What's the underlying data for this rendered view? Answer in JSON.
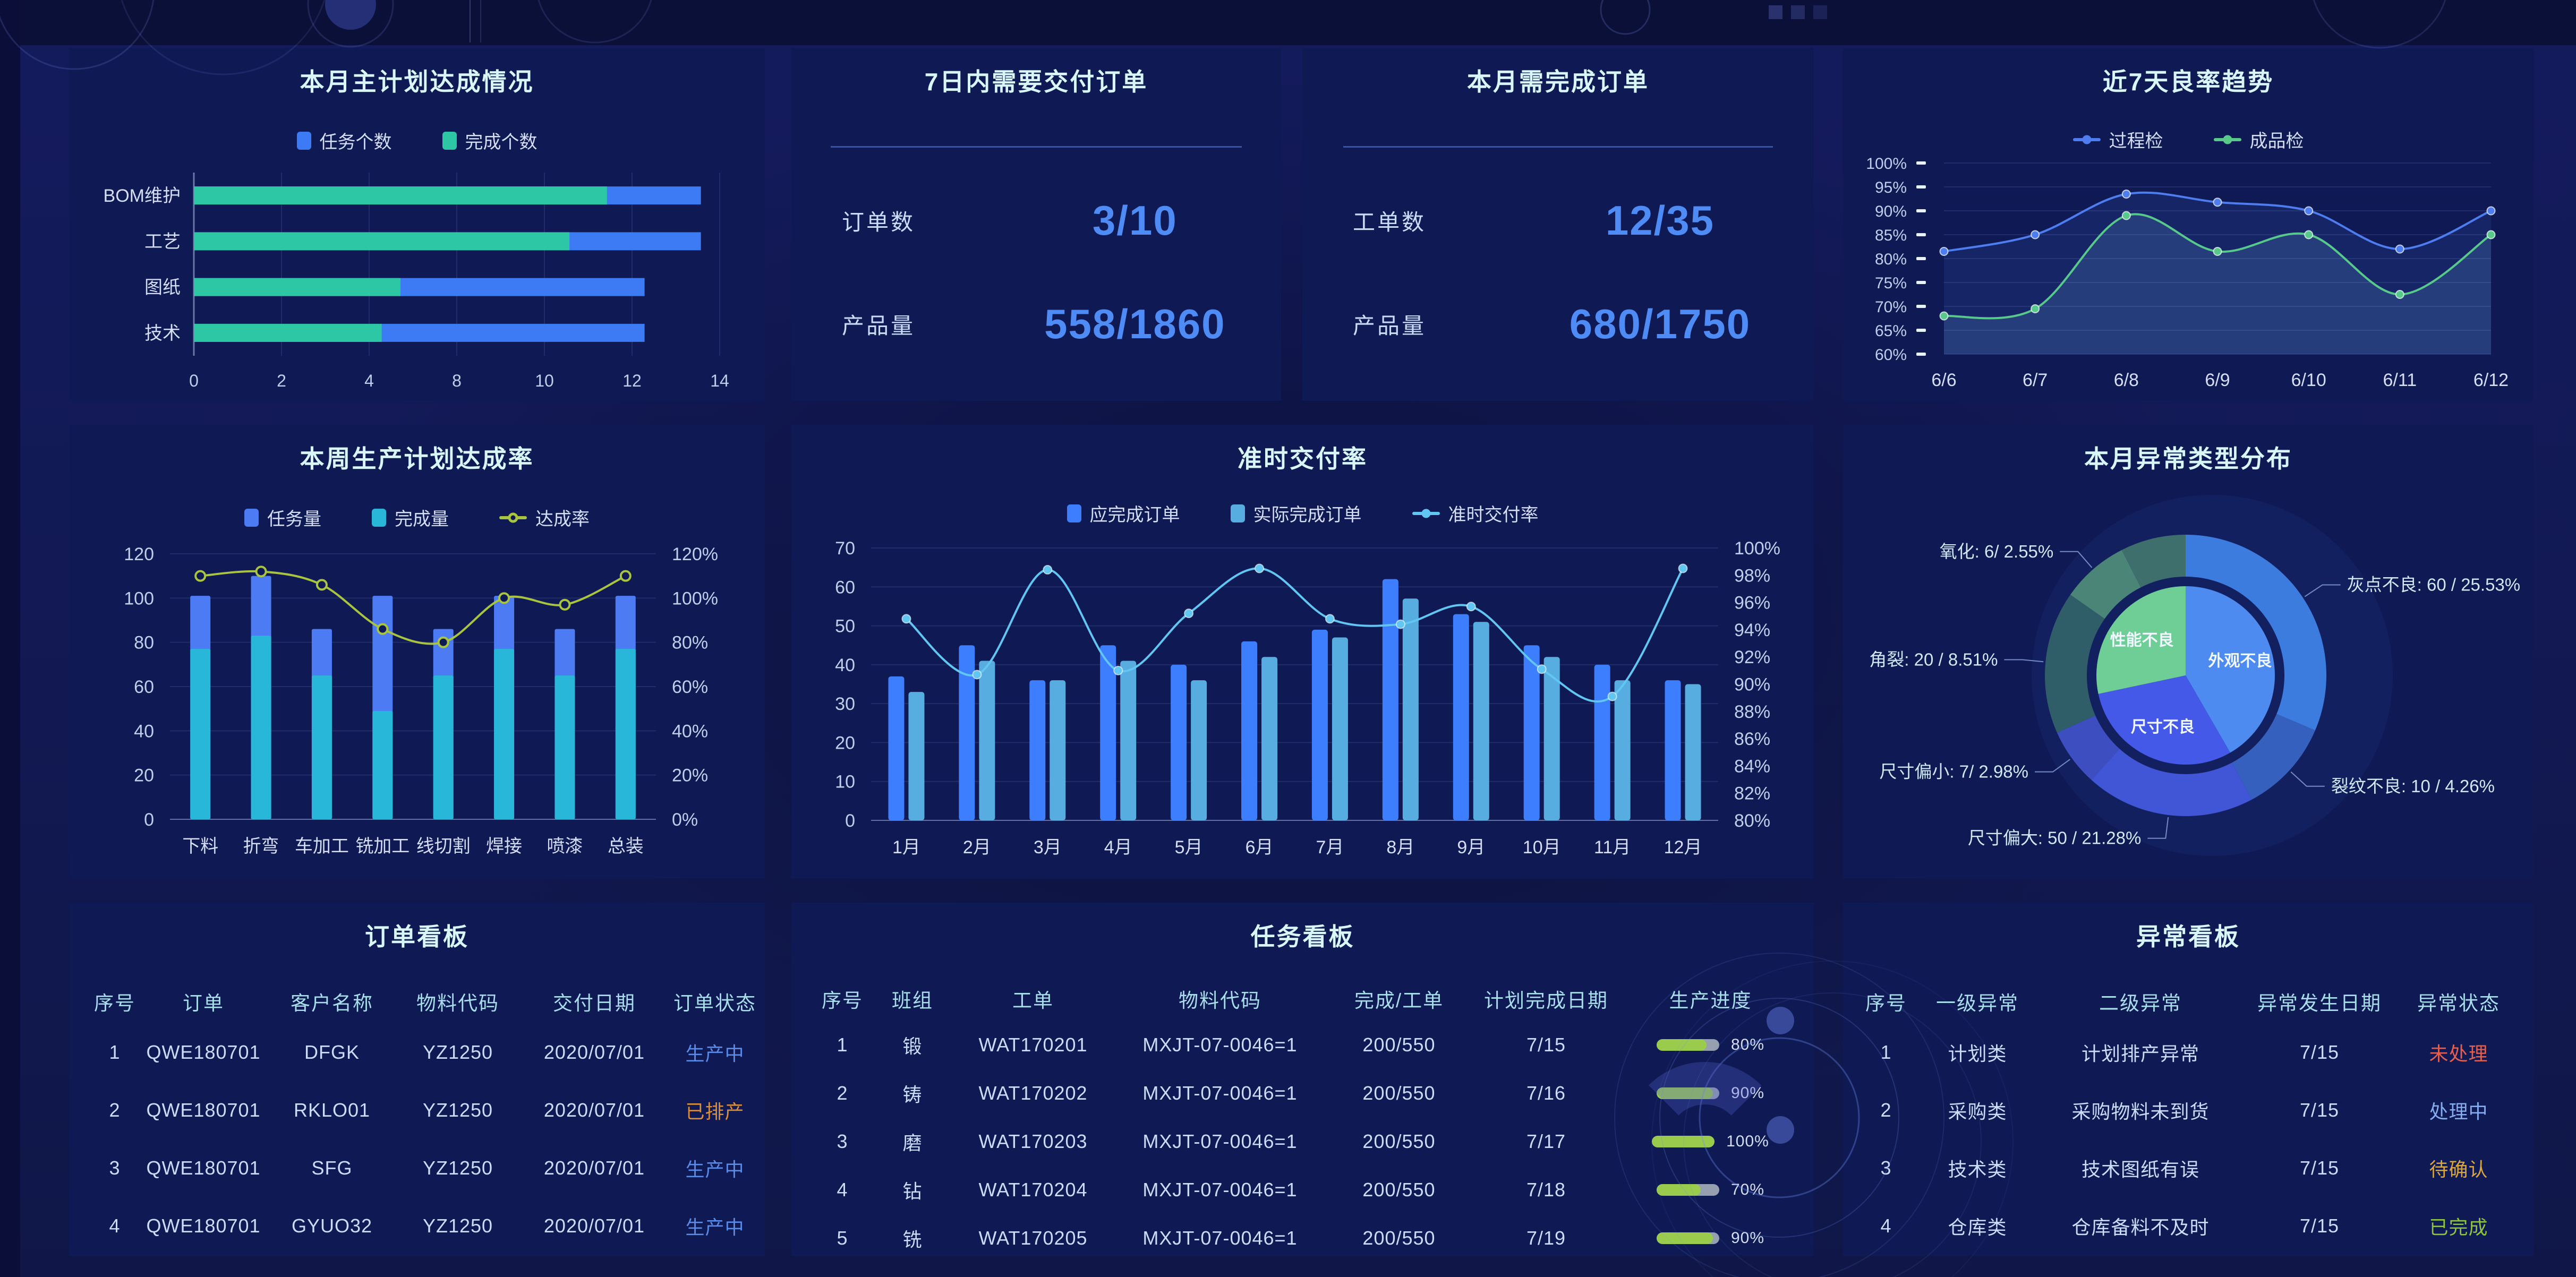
{
  "colors": {
    "accent_blue": "#4F8BF5",
    "title": "#D8F5F8",
    "panel_bg": "#0F1A55",
    "page_bg": "#0C113E",
    "progress_fill": "#9BCB4D",
    "progress_track": "#97A0B0"
  },
  "chart_data": [
    {
      "id": "plan",
      "type": "bar",
      "orientation": "horizontal",
      "title": "本月主计划达成情况",
      "categories": [
        "BOM维护",
        "工艺",
        "图纸",
        "技术"
      ],
      "series": [
        {
          "name": "任务个数",
          "color": "#3D7BF5",
          "values": [
            13.5,
            13.5,
            12,
            12
          ]
        },
        {
          "name": "完成个数",
          "color": "#2EC7A6",
          "values": [
            11,
            10,
            5.5,
            5
          ]
        }
      ],
      "xticks": [
        "0",
        "2",
        "4",
        "8",
        "10",
        "12",
        "14"
      ],
      "xmax": 14,
      "legend": [
        {
          "label": "任务个数",
          "color": "#3D7BF5",
          "marker": "square"
        },
        {
          "label": "完成个数",
          "color": "#2EC7A6",
          "marker": "square"
        }
      ]
    },
    {
      "id": "yield",
      "type": "line",
      "title": "近7天良率趋势",
      "categories": [
        "6/6",
        "6/7",
        "6/8",
        "6/9",
        "6/10",
        "6/11",
        "6/12"
      ],
      "series": [
        {
          "name": "过程检",
          "color": "#4E7DF0",
          "area": "rgba(90,140,255,0.10)",
          "values": [
            81.5,
            85,
            93.5,
            91.8,
            90,
            82,
            90
          ]
        },
        {
          "name": "成品检",
          "color": "#58C98B",
          "area": "rgba(140,210,255,0.14)",
          "values": [
            68,
            69.5,
            89,
            81.5,
            85,
            72.5,
            85
          ]
        }
      ],
      "ymin": 60,
      "ymax": 100,
      "ystep": 5,
      "yunit": "%",
      "legend": [
        {
          "label": "过程检",
          "color": "#4E7DF0",
          "marker": "line-dot"
        },
        {
          "label": "成品检",
          "color": "#58C98B",
          "marker": "line-dot"
        }
      ]
    },
    {
      "id": "week",
      "type": "combo",
      "title": "本周生产计划达成率",
      "overlay": true,
      "categories": [
        "下料",
        "折弯",
        "车加工",
        "铣加工",
        "线切割",
        "焊接",
        "喷漆",
        "总装"
      ],
      "bars": [
        {
          "name": "任务量",
          "color": "#4D7BF3",
          "values": [
            101,
            110,
            86,
            101,
            86,
            101,
            86,
            101
          ]
        },
        {
          "name": "完成量",
          "color": "#29B7D9",
          "values": [
            77,
            83,
            65,
            49,
            65,
            77,
            65,
            77
          ]
        }
      ],
      "line": {
        "name": "达成率",
        "color": "#A9C43E",
        "marker": "ring",
        "values": [
          110,
          112,
          106,
          86,
          80,
          100,
          97,
          110
        ]
      },
      "left": {
        "min": 0,
        "max": 120,
        "step": 20,
        "unit": ""
      },
      "right": {
        "min": 0,
        "max": 120,
        "step": 20,
        "unit": "%"
      },
      "legend": [
        {
          "label": "任务量",
          "color": "#4D7BF3",
          "marker": "square"
        },
        {
          "label": "完成量",
          "color": "#29B7D9",
          "marker": "square"
        },
        {
          "label": "达成率",
          "color": "#A9C43E",
          "marker": "line-ring"
        }
      ]
    },
    {
      "id": "ontime",
      "type": "combo",
      "title": "准时交付率",
      "overlay": false,
      "categories": [
        "1月",
        "2月",
        "3月",
        "4月",
        "5月",
        "6月",
        "7月",
        "8月",
        "9月",
        "10月",
        "11月",
        "12月"
      ],
      "bars": [
        {
          "name": "应完成订单",
          "color": "#3D7EFF",
          "values": [
            37,
            45,
            36,
            45,
            40,
            46,
            49,
            62,
            53,
            45,
            40,
            36
          ]
        },
        {
          "name": "实际完成订单",
          "color": "#57ADE0",
          "values": [
            33,
            41,
            36,
            41,
            36,
            42,
            47,
            57,
            51,
            42,
            36,
            35
          ]
        }
      ],
      "line": {
        "name": "准时交付率",
        "color": "#62C6F2",
        "marker": "dot",
        "values": [
          94.8,
          90.7,
          98.4,
          91,
          95.2,
          98.5,
          94.8,
          94.4,
          95.7,
          91.1,
          89.1,
          98.5
        ]
      },
      "left": {
        "min": 0,
        "max": 70,
        "step": 10,
        "unit": ""
      },
      "right": {
        "min": 80,
        "max": 100,
        "step": 2,
        "unit": "%"
      },
      "legend": [
        {
          "label": "应完成订单",
          "color": "#3D7EFF",
          "marker": "square"
        },
        {
          "label": "实际完成订单",
          "color": "#57ADE0",
          "marker": "square"
        },
        {
          "label": "准时交付率",
          "color": "#62C6F2",
          "marker": "line-dot"
        }
      ]
    },
    {
      "id": "abnormal",
      "type": "pie",
      "title": "本月异常类型分布",
      "inner": [
        {
          "name": "外观不良",
          "deg": 150,
          "color": "#4D8BF0"
        },
        {
          "name": "尺寸不良",
          "deg": 108,
          "color": "#4559E8"
        },
        {
          "name": "性能不良",
          "deg": 102,
          "color": "#6FCE96"
        }
      ],
      "outer": [
        {
          "name": "灰点不良",
          "label": "灰点不良: 60 / 25.53%",
          "value": 60,
          "pct": "25.53%",
          "deg": 113,
          "color": "#3C7CDF"
        },
        {
          "name": "裂纹不良",
          "label": "裂纹不良: 10 / 4.26%",
          "value": 10,
          "pct": "4.26%",
          "deg": 39,
          "color": "#3560BD"
        },
        {
          "name": "尺寸偏大",
          "label": "尺寸偏大: 50 / 21.28%",
          "value": 50,
          "pct": "21.28%",
          "deg": 70,
          "color": "#4156D6"
        },
        {
          "name": "尺寸偏小",
          "label": "尺寸偏小: 7/ 2.98%",
          "value": 7,
          "pct": "2.98%",
          "deg": 24,
          "color": "#3D4FC0"
        },
        {
          "name": "角裂",
          "label": "角裂: 20 / 8.51%",
          "value": 20,
          "pct": "8.51%",
          "deg": 59,
          "color": "#2F5D68"
        },
        {
          "name": "氧化",
          "label": "氧化: 6/ 2.55%",
          "value": 6,
          "pct": "2.55%",
          "deg": 28,
          "color": "#4A8577"
        },
        {
          "name": "",
          "label": "",
          "deg": 27,
          "color": "#3F6F6D"
        }
      ]
    }
  ],
  "panels": {
    "plan": {
      "title": "本月主计划达成情况"
    },
    "deliver7": {
      "title": "7日内需要交付订单",
      "stats": [
        {
          "label": "订单数",
          "value": "3/10"
        },
        {
          "label": "产品量",
          "value": "558/1860"
        }
      ]
    },
    "month_orders": {
      "title": "本月需完成订单",
      "stats": [
        {
          "label": "工单数",
          "value": "12/35"
        },
        {
          "label": "产品量",
          "value": "680/1750"
        }
      ]
    },
    "yield": {
      "title": "近7天良率趋势"
    },
    "week": {
      "title": "本周生产计划达成率"
    },
    "ontime": {
      "title": "准时交付率"
    },
    "abnormal": {
      "title": "本月异常类型分布"
    },
    "orders": {
      "title": "订单看板",
      "table": {
        "headers": [
          "序号",
          "订单",
          "客户名称",
          "物料代码",
          "交付日期",
          "订单状态"
        ],
        "rows": [
          [
            "1",
            "QWE180701",
            "DFGK",
            "YZ1250",
            "2020/07/01",
            {
              "text": "生产中",
              "color": "#5A8BE8"
            }
          ],
          [
            "2",
            "QWE180701",
            "RKLO01",
            "YZ1250",
            "2020/07/01",
            {
              "text": "已排产",
              "color": "#D98E3C"
            }
          ],
          [
            "3",
            "QWE180701",
            "SFG",
            "YZ1250",
            "2020/07/01",
            {
              "text": "生产中",
              "color": "#5A8BE8"
            }
          ],
          [
            "4",
            "QWE180701",
            "GYUO32",
            "YZ1250",
            "2020/07/01",
            {
              "text": "生产中",
              "color": "#5A8BE8"
            }
          ]
        ]
      }
    },
    "tasks": {
      "title": "任务看板",
      "table": {
        "headers": [
          "序号",
          "班组",
          "工单",
          "物料代码",
          "完成/工单",
          "计划完成日期",
          "生产进度"
        ],
        "rows": [
          [
            "1",
            "锻",
            "WAT170201",
            "MXJT-07-0046=1",
            "200/550",
            "7/15",
            {
              "progress": 80,
              "label": "80%"
            }
          ],
          [
            "2",
            "铸",
            "WAT170202",
            "MXJT-07-0046=1",
            "200/550",
            "7/16",
            {
              "progress": 90,
              "label": "90%"
            }
          ],
          [
            "3",
            "磨",
            "WAT170203",
            "MXJT-07-0046=1",
            "200/550",
            "7/17",
            {
              "progress": 100,
              "label": "100%"
            }
          ],
          [
            "4",
            "钻",
            "WAT170204",
            "MXJT-07-0046=1",
            "200/550",
            "7/18",
            {
              "progress": 70,
              "label": "70%"
            }
          ],
          [
            "5",
            "铣",
            "WAT170205",
            "MXJT-07-0046=1",
            "200/550",
            "7/19",
            {
              "progress": 90,
              "label": "90%"
            }
          ]
        ]
      }
    },
    "issues": {
      "title": "异常看板",
      "table": {
        "headers": [
          "序号",
          "一级异常",
          "二级异常",
          "异常发生日期",
          "异常状态"
        ],
        "rows": [
          [
            "1",
            "计划类",
            "计划排产异常",
            "7/15",
            {
              "text": "未处理",
              "color": "#E4604E"
            }
          ],
          [
            "2",
            "采购类",
            "采购物料未到货",
            "7/15",
            {
              "text": "处理中",
              "color": "#86ACEF"
            }
          ],
          [
            "3",
            "技术类",
            "技术图纸有误",
            "7/15",
            {
              "text": "待确认",
              "color": "#D9A53C"
            }
          ],
          [
            "4",
            "仓库类",
            "仓库备料不及时",
            "7/15",
            {
              "text": "已完成",
              "color": "#8FC43F"
            }
          ]
        ]
      }
    }
  }
}
